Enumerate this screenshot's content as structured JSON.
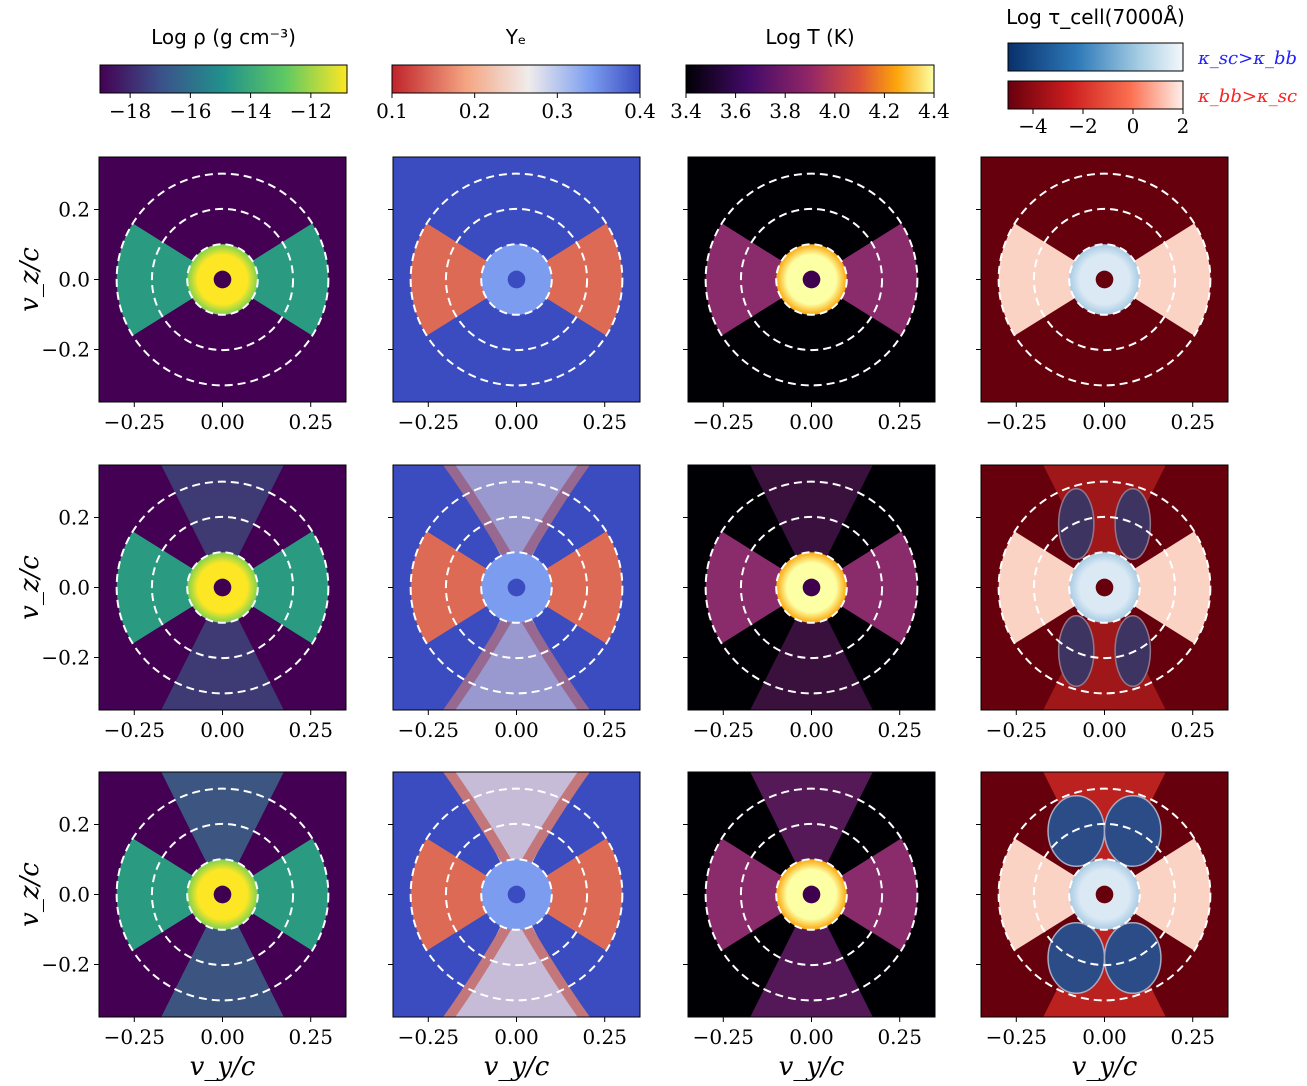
{
  "colorbars": [
    {
      "title": "Log ρ (g cm⁻³)",
      "colormap": "viridis",
      "range": [
        -19,
        -10.8
      ],
      "ticks": [
        {
          "label": "−18",
          "value": -18
        },
        {
          "label": "−16",
          "value": -16
        },
        {
          "label": "−14",
          "value": -14
        },
        {
          "label": "−12",
          "value": -12
        }
      ]
    },
    {
      "title": "Yₑ",
      "colormap": "RdBu_like",
      "range": [
        0.1,
        0.4
      ],
      "ticks": [
        {
          "label": "0.1",
          "value": 0.1
        },
        {
          "label": "0.2",
          "value": 0.2
        },
        {
          "label": "0.3",
          "value": 0.3
        },
        {
          "label": "0.4",
          "value": 0.4
        }
      ]
    },
    {
      "title": "Log T (K)",
      "colormap": "inferno",
      "range": [
        3.4,
        4.4
      ],
      "ticks": [
        {
          "label": "3.4",
          "value": 3.4
        },
        {
          "label": "3.6",
          "value": 3.6
        },
        {
          "label": "3.8",
          "value": 3.8
        },
        {
          "label": "4.0",
          "value": 4.0
        },
        {
          "label": "4.2",
          "value": 4.2
        },
        {
          "label": "4.4",
          "value": 4.4
        }
      ]
    },
    {
      "title": "Log τ_cell(7000Å)",
      "colormap": "Blues_Reds_stacked",
      "range": [
        -5,
        2
      ],
      "ticks": [
        {
          "label": "−4",
          "value": -4
        },
        {
          "label": "−2",
          "value": -2
        },
        {
          "label": "0",
          "value": 0
        },
        {
          "label": "2",
          "value": 2
        }
      ],
      "legend": [
        {
          "text": "κ_sc>κ_bb",
          "color": "#1f1fff"
        },
        {
          "text": "κ_bb>κ_sc",
          "color": "#ff2020"
        }
      ]
    }
  ],
  "axes": {
    "xlabel": "v_y/c",
    "ylabel": "v_z/c",
    "xlim": [
      -0.35,
      0.35
    ],
    "ylim": [
      -0.35,
      0.35
    ],
    "xticks": [
      {
        "label": "−0.25",
        "value": -0.25
      },
      {
        "label": "0.00",
        "value": 0.0
      },
      {
        "label": "0.25",
        "value": 0.25
      }
    ],
    "yticks": [
      {
        "label": "0.2",
        "value": 0.2
      },
      {
        "label": "0.0",
        "value": 0.0
      },
      {
        "label": "−0.2",
        "value": -0.2
      }
    ]
  },
  "chart_data": {
    "type": "heatmap",
    "description_rows": 3,
    "description_cols": 4,
    "panel_quantities": [
      "Log ρ",
      "Yₑ",
      "Log T",
      "Log τ_cell(7000Å)"
    ],
    "dashed_circle_radii": [
      0.1,
      0.2,
      0.3
    ],
    "colors": {
      "rho_background": "#440154",
      "ye_background": "#3b4cc0",
      "t_background": "#000004",
      "tau_background": "#67000d",
      "dashed_line": "#ffffff"
    }
  }
}
